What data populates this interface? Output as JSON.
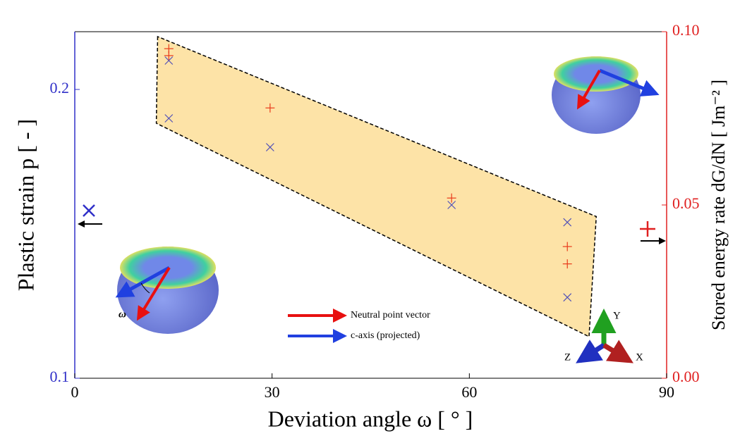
{
  "chart_data": {
    "type": "scatter",
    "x_label": "Deviation angle ω [ ° ]",
    "y_label": "Plastic strain p [ - ]",
    "y2_label": "Stored energy rate dG/dN [ Jm⁻² ]",
    "xlim": [
      0,
      90
    ],
    "xticks": [
      0,
      30,
      60,
      90
    ],
    "ylim": [
      0.1,
      0.22
    ],
    "yticks": [
      0.1,
      0.2
    ],
    "y2lim": [
      0,
      0.1
    ],
    "y2ticks": [
      {
        "value": 0,
        "label": "0.00"
      },
      {
        "value": 0.05,
        "label": "0.05"
      },
      {
        "value": 0.1,
        "label": "0.10"
      }
    ],
    "left_color": "#3030c8",
    "right_color": "#e02020",
    "series": [
      {
        "color": "#5050b8",
        "marker": "x",
        "x": [
          14.3,
          14.3,
          29.7,
          57.3,
          74.9,
          74.9
        ],
        "values": [
          0.21,
          0.19,
          0.18,
          0.16,
          0.154,
          0.128
        ]
      },
      {
        "color": "#e83a1a",
        "marker": "+",
        "axis": "y2",
        "x": [
          14.3,
          14.3,
          29.7,
          57.3,
          74.9,
          74.9
        ],
        "values": [
          0.0951,
          0.0931,
          0.078,
          0.052,
          0.038,
          0.033
        ]
      }
    ],
    "region": {
      "color": "#fde3a7",
      "x": [
        12.6,
        12.4,
        78.2,
        79.3
      ],
      "values": [
        0.2183,
        0.1883,
        0.1144,
        0.156
      ]
    },
    "annotations": [
      {
        "text": "Neutral point vector",
        "color": "#e81010"
      },
      {
        "text": "c-axis (projected)",
        "color": "#2040e0"
      }
    ],
    "inset_label": "ω",
    "triad": [
      "Y",
      "Z",
      "X"
    ]
  }
}
